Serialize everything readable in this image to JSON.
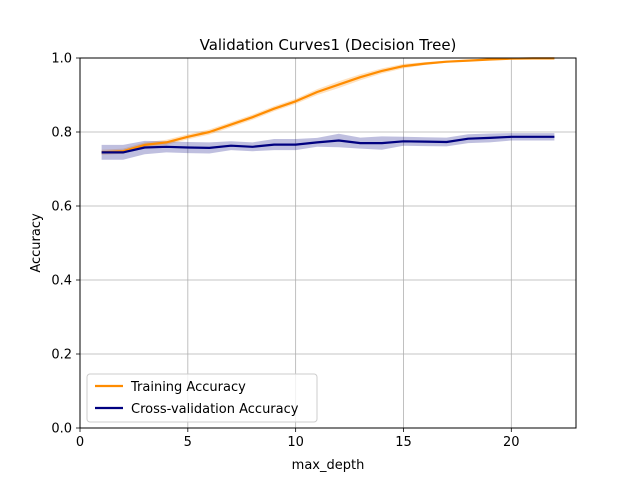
{
  "chart_data": {
    "type": "line",
    "title": "Validation Curves1 (Decision Tree)",
    "xlabel": "max_depth",
    "ylabel": "Accuracy",
    "xlim": [
      0,
      23
    ],
    "ylim": [
      0,
      1.0
    ],
    "x_ticks": [
      0,
      5,
      10,
      15,
      20
    ],
    "y_ticks": [
      0.0,
      0.2,
      0.4,
      0.6,
      0.8,
      1.0
    ],
    "x_tick_labels": [
      "0",
      "5",
      "10",
      "15",
      "20"
    ],
    "y_tick_labels": [
      "0.0",
      "0.2",
      "0.4",
      "0.6",
      "0.8",
      "1.0"
    ],
    "grid": true,
    "legend_position": "lower-left",
    "x": [
      1,
      2,
      3,
      4,
      5,
      6,
      7,
      8,
      9,
      10,
      11,
      12,
      13,
      14,
      15,
      16,
      17,
      18,
      19,
      20,
      21,
      22
    ],
    "series": [
      {
        "name": "Training Accuracy",
        "color": "#ff8c00",
        "values": [
          0.745,
          0.748,
          0.765,
          0.772,
          0.787,
          0.8,
          0.82,
          0.84,
          0.863,
          0.883,
          0.908,
          0.928,
          0.948,
          0.965,
          0.978,
          0.985,
          0.99,
          0.993,
          0.996,
          0.998,
          0.999,
          0.999
        ],
        "band": [
          0.007,
          0.007,
          0.007,
          0.007,
          0.007,
          0.007,
          0.007,
          0.007,
          0.007,
          0.007,
          0.008,
          0.009,
          0.008,
          0.007,
          0.006,
          0.004,
          0.003,
          0.002,
          0.002,
          0.001,
          0.001,
          0.001
        ]
      },
      {
        "name": "Cross-validation Accuracy",
        "color": "#000080",
        "values": [
          0.745,
          0.745,
          0.758,
          0.76,
          0.758,
          0.757,
          0.763,
          0.76,
          0.766,
          0.766,
          0.772,
          0.777,
          0.77,
          0.77,
          0.775,
          0.774,
          0.773,
          0.782,
          0.784,
          0.787,
          0.787,
          0.787
        ],
        "band": [
          0.02,
          0.02,
          0.018,
          0.015,
          0.015,
          0.015,
          0.012,
          0.012,
          0.015,
          0.015,
          0.012,
          0.018,
          0.015,
          0.018,
          0.012,
          0.012,
          0.012,
          0.012,
          0.012,
          0.01,
          0.01,
          0.01
        ]
      }
    ]
  }
}
